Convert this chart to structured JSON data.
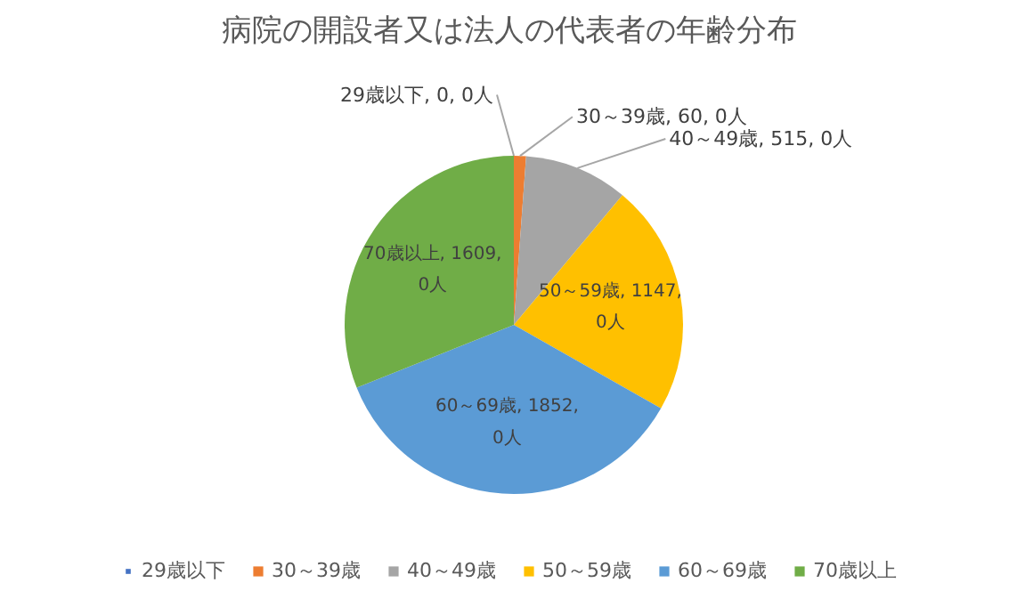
{
  "chart_data": {
    "type": "pie",
    "title": "病院の開設者又は法人の代表者の年齢分布",
    "categories": [
      "29歳以下",
      "30～39歳",
      "40～49歳",
      "50～59歳",
      "60～69歳",
      "70歳以上"
    ],
    "values": [
      0,
      60,
      515,
      1147,
      1852,
      1609
    ],
    "colors": [
      "#4472c4",
      "#ed7d31",
      "#a5a5a5",
      "#ffc000",
      "#5b9bd5",
      "#70ad47"
    ],
    "value_labels": [
      "29歳以下, 0, 0人",
      "30～39歳, 60, 0人",
      "40～49歳, 515, 0人",
      "50～59歳, 1147, 0人",
      "60～69歳, 1852, 0人",
      "70歳以上, 1609, 0人"
    ],
    "legend": "bottom"
  }
}
